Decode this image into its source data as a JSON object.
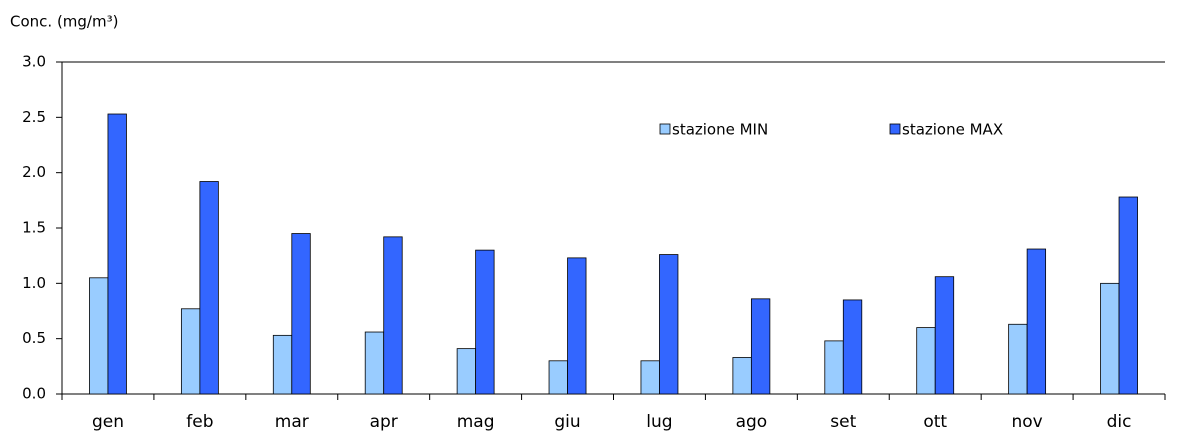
{
  "chart_data": {
    "type": "bar",
    "y_label": "Conc. (mg/m³)",
    "categories": [
      "gen",
      "feb",
      "mar",
      "apr",
      "mag",
      "giu",
      "lug",
      "ago",
      "set",
      "ott",
      "nov",
      "dic"
    ],
    "series": [
      {
        "name": "stazione MIN",
        "color": "#99ccff",
        "values": [
          1.05,
          0.77,
          0.53,
          0.56,
          0.41,
          0.3,
          0.3,
          0.33,
          0.48,
          0.6,
          0.63,
          1.0
        ]
      },
      {
        "name": "stazione MAX",
        "color": "#3366ff",
        "values": [
          2.53,
          1.92,
          1.45,
          1.42,
          1.3,
          1.23,
          1.26,
          0.86,
          0.85,
          1.06,
          1.31,
          1.78
        ]
      }
    ],
    "ylim": [
      0,
      3
    ],
    "yticks": [
      {
        "value": 0,
        "label": "0.0"
      },
      0.5,
      {
        "value": 1,
        "label": "1.0"
      },
      1.5,
      {
        "value": 2,
        "label": "2.0"
      },
      2.5,
      {
        "value": 3,
        "label": "3.0"
      }
    ],
    "grid": false,
    "legend": "top-right"
  }
}
